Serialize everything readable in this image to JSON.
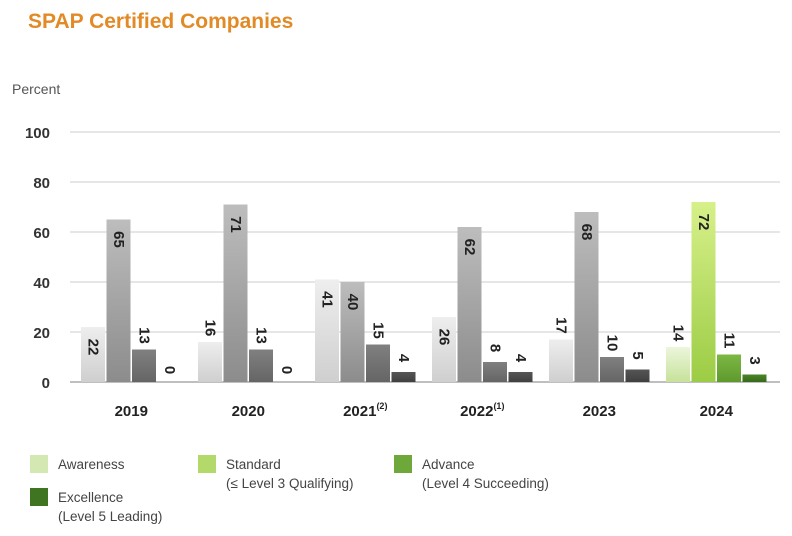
{
  "title": "SPAP Certified Companies",
  "chart_data": {
    "type": "bar",
    "ylabel": "Percent",
    "ylim": [
      0,
      100
    ],
    "yticks": [
      0,
      20,
      40,
      60,
      80,
      100
    ],
    "grid": true,
    "legend_position": "bottom",
    "categories": [
      {
        "label": "2019",
        "sup": ""
      },
      {
        "label": "2020",
        "sup": ""
      },
      {
        "label": "2021",
        "sup": "(2)"
      },
      {
        "label": "2022",
        "sup": "(1)"
      },
      {
        "label": "2023",
        "sup": ""
      },
      {
        "label": "2024",
        "sup": ""
      }
    ],
    "series": [
      {
        "name": "Awareness",
        "values": [
          22,
          16,
          41,
          26,
          17,
          14
        ]
      },
      {
        "name": "Standard",
        "values": [
          65,
          71,
          40,
          62,
          68,
          72
        ]
      },
      {
        "name": "Advance",
        "values": [
          13,
          13,
          15,
          8,
          10,
          11
        ]
      },
      {
        "name": "Excellence",
        "values": [
          0,
          0,
          4,
          4,
          5,
          3
        ]
      }
    ],
    "colors": {
      "awareness_gray": "#dcdcdc",
      "standard_gray": "#a6a6a6",
      "advance_gray": "#6f6f6f",
      "excellence_gray": "#4a4a4a",
      "awareness": "#d3e8b2",
      "standard": "#b3d96a",
      "advance": "#6fa83a",
      "excellence": "#3f7520"
    }
  },
  "legend": [
    {
      "line1": "Awareness",
      "line2": "",
      "color": "#d3e8b2"
    },
    {
      "line1": "Standard",
      "line2": "(≤ Level 3 Qualifying)",
      "color": "#b3d96a"
    },
    {
      "line1": "Advance",
      "line2": "(Level 4 Succeeding)",
      "color": "#6fa83a"
    },
    {
      "line1": "Excellence",
      "line2": "(Level 5 Leading)",
      "color": "#3f7520"
    }
  ]
}
